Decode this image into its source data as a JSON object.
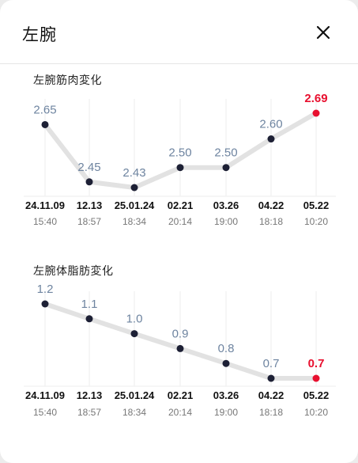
{
  "header": {
    "title": "左腕",
    "close_icon": "close-icon"
  },
  "colors": {
    "line": "#e2e2e2",
    "point": "#1d2035",
    "highlight": "#e8102f",
    "value": "#6e84a0",
    "grid": "#eeeeee"
  },
  "x_labels": [
    {
      "date": "24.11.09",
      "time": "15:40"
    },
    {
      "date": "12.13",
      "time": "18:57"
    },
    {
      "date": "25.01.24",
      "time": "18:34"
    },
    {
      "date": "02.21",
      "time": "20:14"
    },
    {
      "date": "03.26",
      "time": "19:00"
    },
    {
      "date": "04.22",
      "time": "18:18"
    },
    {
      "date": "05.22",
      "time": "10:20"
    }
  ],
  "chart_data": [
    {
      "type": "line",
      "title": "左腕筋肉変化",
      "values": [
        2.65,
        2.45,
        2.43,
        2.5,
        2.5,
        2.6,
        2.69
      ],
      "labels": [
        "2.65",
        "2.45",
        "2.43",
        "2.50",
        "2.50",
        "2.60",
        "2.69"
      ],
      "highlight_index": 6,
      "grid": true
    },
    {
      "type": "line",
      "title": "左腕体脂肪変化",
      "values": [
        1.2,
        1.1,
        1.0,
        0.9,
        0.8,
        0.7,
        0.7
      ],
      "labels": [
        "1.2",
        "1.1",
        "1.0",
        "0.9",
        "0.8",
        "0.7",
        "0.7"
      ],
      "highlight_index": 6,
      "grid": true
    }
  ]
}
